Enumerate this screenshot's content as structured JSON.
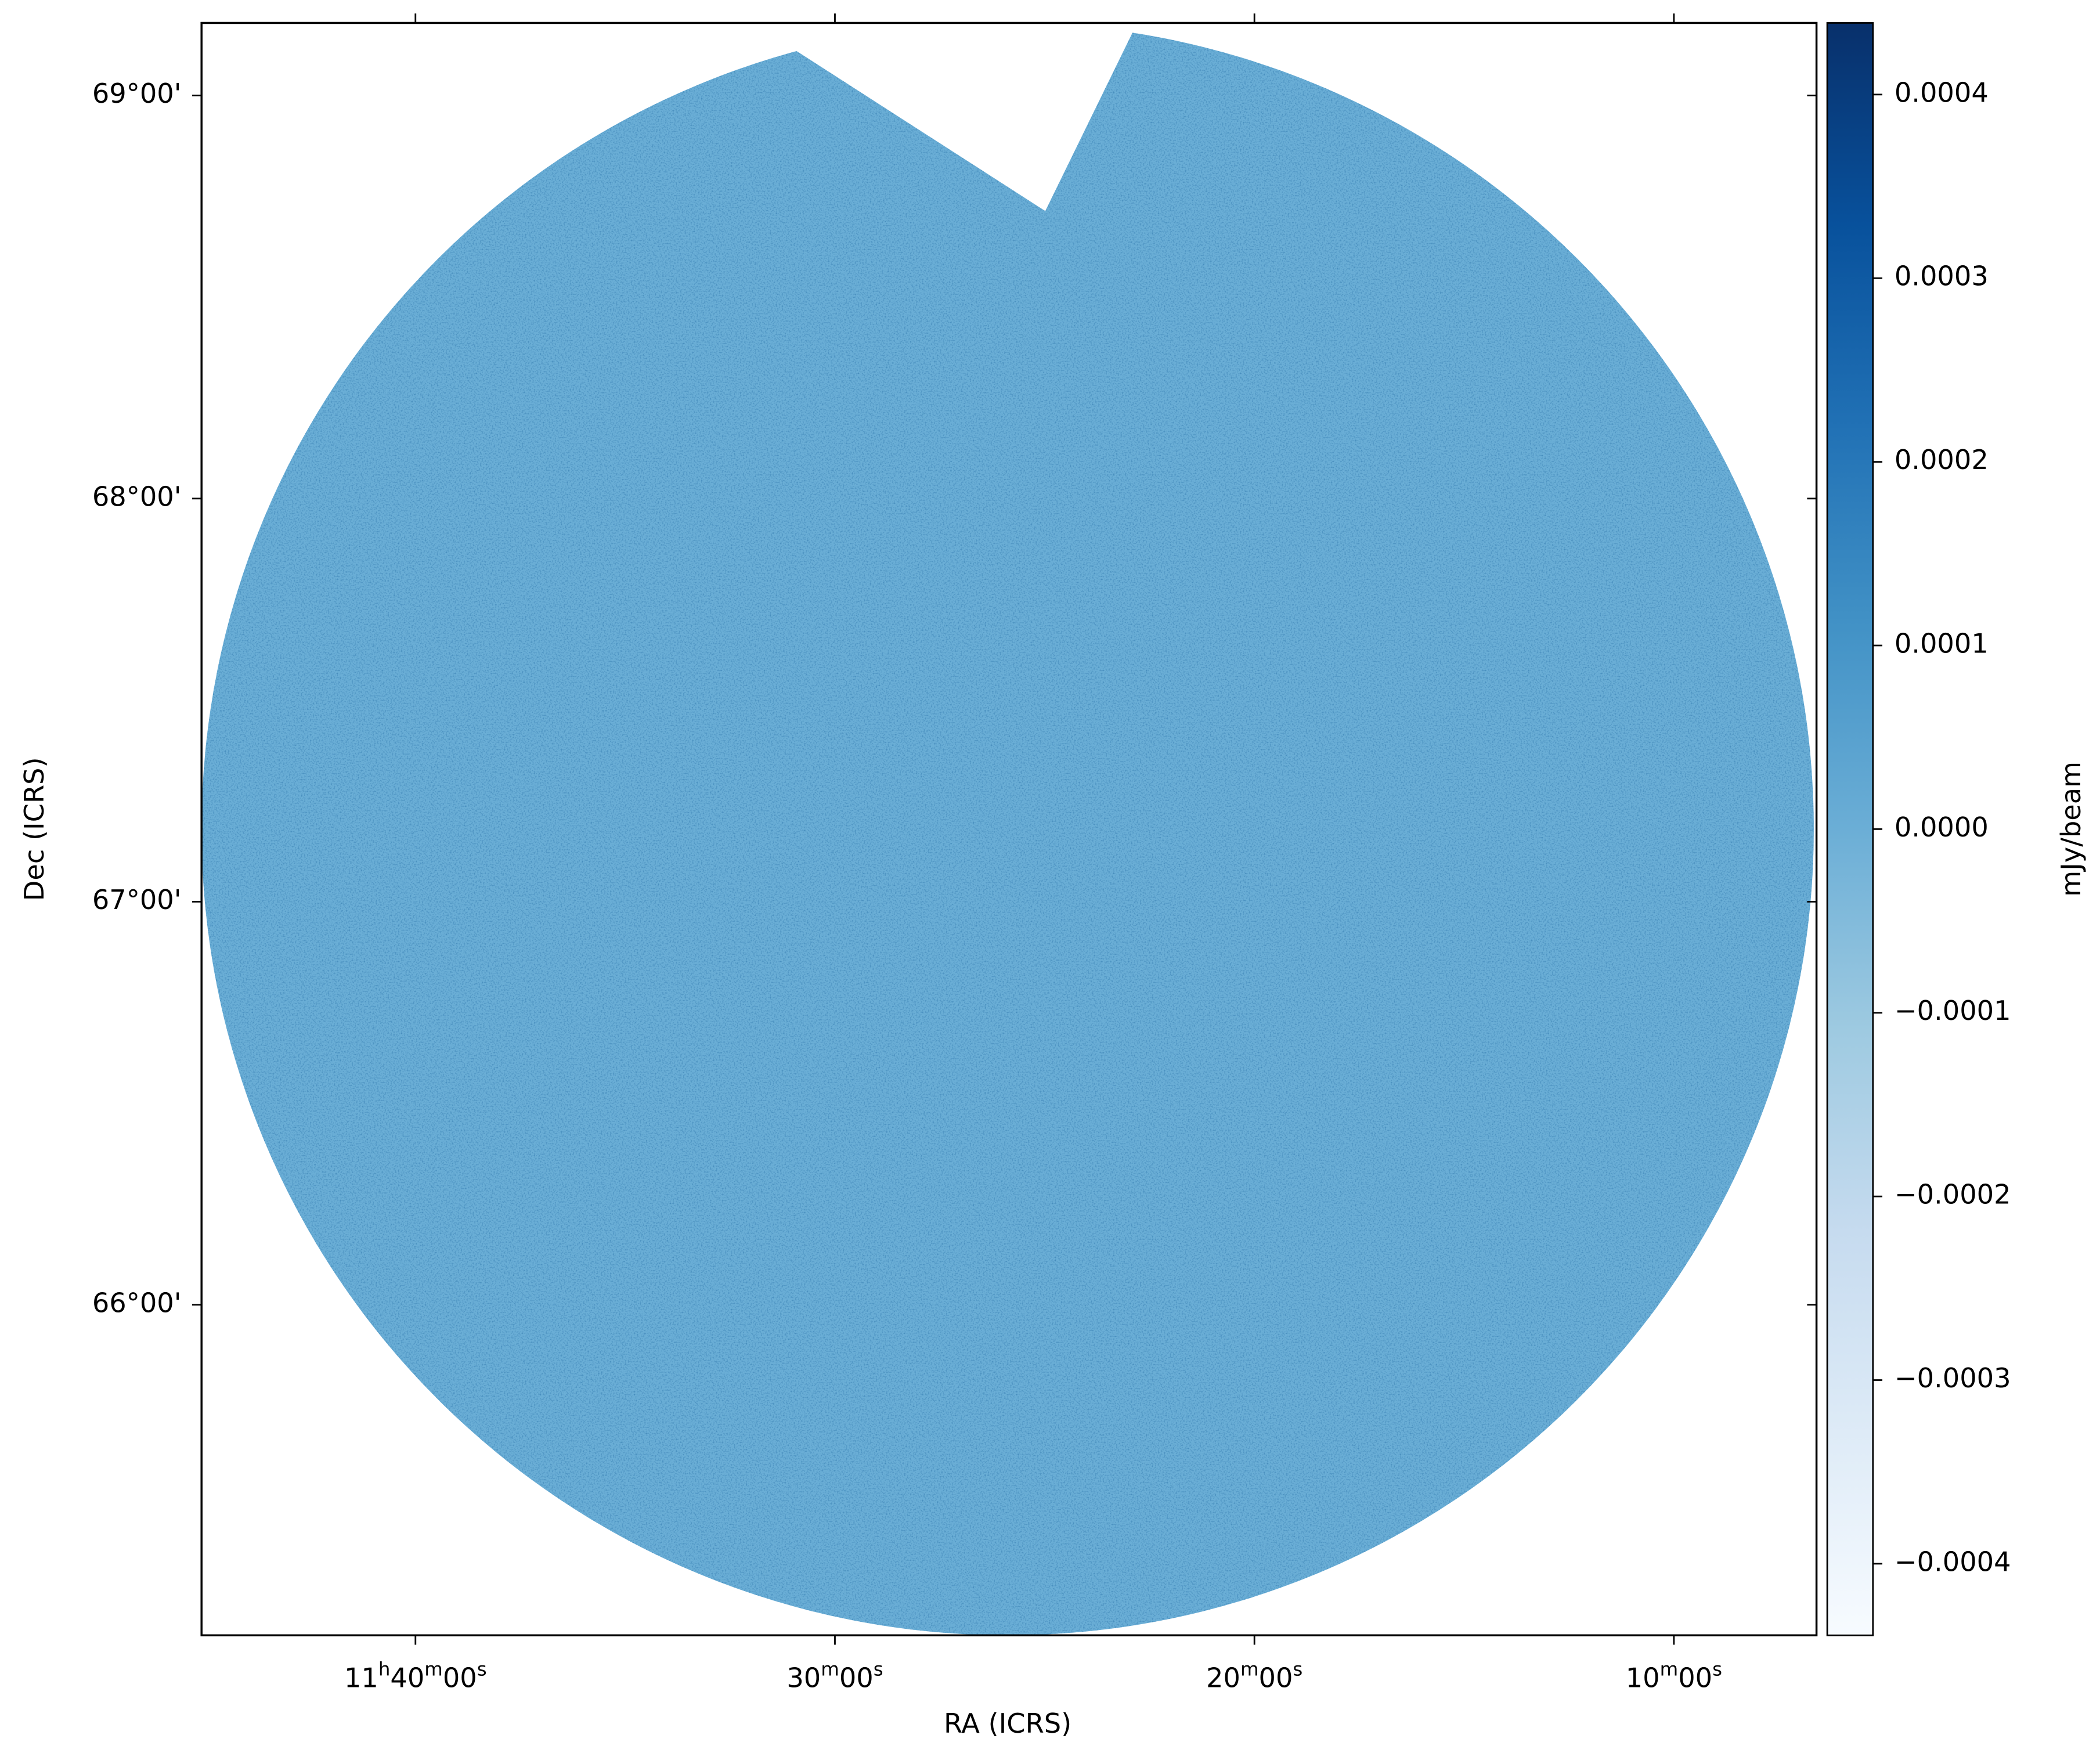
{
  "chart_data": {
    "type": "image",
    "xlabel": "RA (ICRS)",
    "ylabel": "Dec (ICRS)",
    "colorbar_label": "mJy/beam",
    "colormap": "Blues",
    "color": "#6aaed6",
    "xlim": [
      705.1,
      666.6
    ],
    "xticks": [
      {
        "value": 700,
        "label": "11h40m00s"
      },
      {
        "value": 690,
        "label": "30m00s"
      },
      {
        "value": 680,
        "label": "20m00s"
      },
      {
        "value": 670,
        "label": "10m00s"
      }
    ],
    "ylim": [
      65.18,
      69.18
    ],
    "yticks": [
      {
        "value": 66,
        "label": "66°00'"
      },
      {
        "value": 67,
        "label": "67°00'"
      },
      {
        "value": 68,
        "label": "68°00'"
      },
      {
        "value": 69,
        "label": "69°00'"
      }
    ],
    "clim": [
      -0.000439,
      0.000439
    ],
    "cticks": [
      {
        "value": -0.0004,
        "label": "−0.0004"
      },
      {
        "value": -0.0003,
        "label": "−0.0003"
      },
      {
        "value": -0.0002,
        "label": "−0.0002"
      },
      {
        "value": -0.0001,
        "label": "−0.0001"
      },
      {
        "value": 0,
        "label": "0.0000"
      },
      0.0001,
      0.0002,
      0.0003,
      0.0004
    ]
  }
}
